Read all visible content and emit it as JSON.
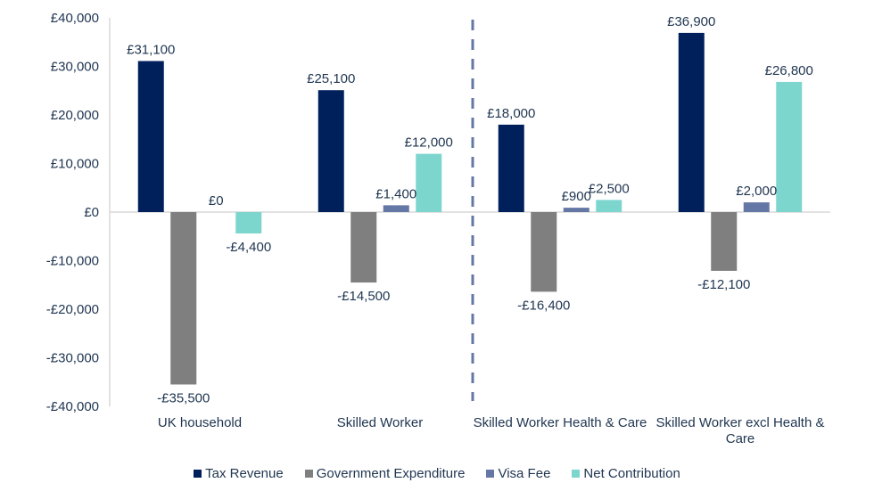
{
  "chart_data": {
    "type": "bar",
    "title": "",
    "xlabel": "",
    "ylabel": "",
    "ylim": [
      -40000,
      40000
    ],
    "yticks": [
      40000,
      30000,
      20000,
      10000,
      0,
      -10000,
      -20000,
      -30000,
      -40000
    ],
    "ytick_labels": [
      "£40,000",
      "£30,000",
      "£20,000",
      "£10,000",
      "£0",
      "-£10,000",
      "-£20,000",
      "-£30,000",
      "-£40,000"
    ],
    "grid": false,
    "categories": [
      "UK household",
      "Skilled Worker",
      "Skilled Worker Health & Care",
      "Skilled Worker excl Health & Care"
    ],
    "category_lines": [
      [
        "UK household"
      ],
      [
        "Skilled Worker"
      ],
      [
        "Skilled Worker Health & Care"
      ],
      [
        "Skilled Worker excl Health &",
        "Care"
      ]
    ],
    "divider": "dashed vertical line between Skilled Worker and Skilled Worker Health & Care",
    "series": [
      {
        "name": "Tax Revenue",
        "color": "#00205b",
        "values": [
          31100,
          25100,
          18000,
          36900
        ],
        "labels": [
          "£31,100",
          "£25,100",
          "£18,000",
          "£36,900"
        ]
      },
      {
        "name": "Government Expenditure",
        "color": "#7f7f7f",
        "values": [
          -35500,
          -14500,
          -16400,
          -12100
        ],
        "labels": [
          "-£35,500",
          "-£14,500",
          "-£16,400",
          "-£12,100"
        ]
      },
      {
        "name": "Visa Fee",
        "color": "#6577a5",
        "values": [
          0,
          1400,
          900,
          2000
        ],
        "labels": [
          "£0",
          "£1,400",
          "£900",
          "£2,000"
        ]
      },
      {
        "name": "Net Contribution",
        "color": "#7dd6ce",
        "values": [
          -4400,
          12000,
          2500,
          26800
        ],
        "labels": [
          "-£4,400",
          "£12,000",
          "£2,500",
          "£26,800"
        ]
      }
    ],
    "legend_position": "bottom"
  },
  "colors": {
    "text": "#1f3550",
    "axis": "#d9d9d9",
    "divider": "#6577a5"
  }
}
